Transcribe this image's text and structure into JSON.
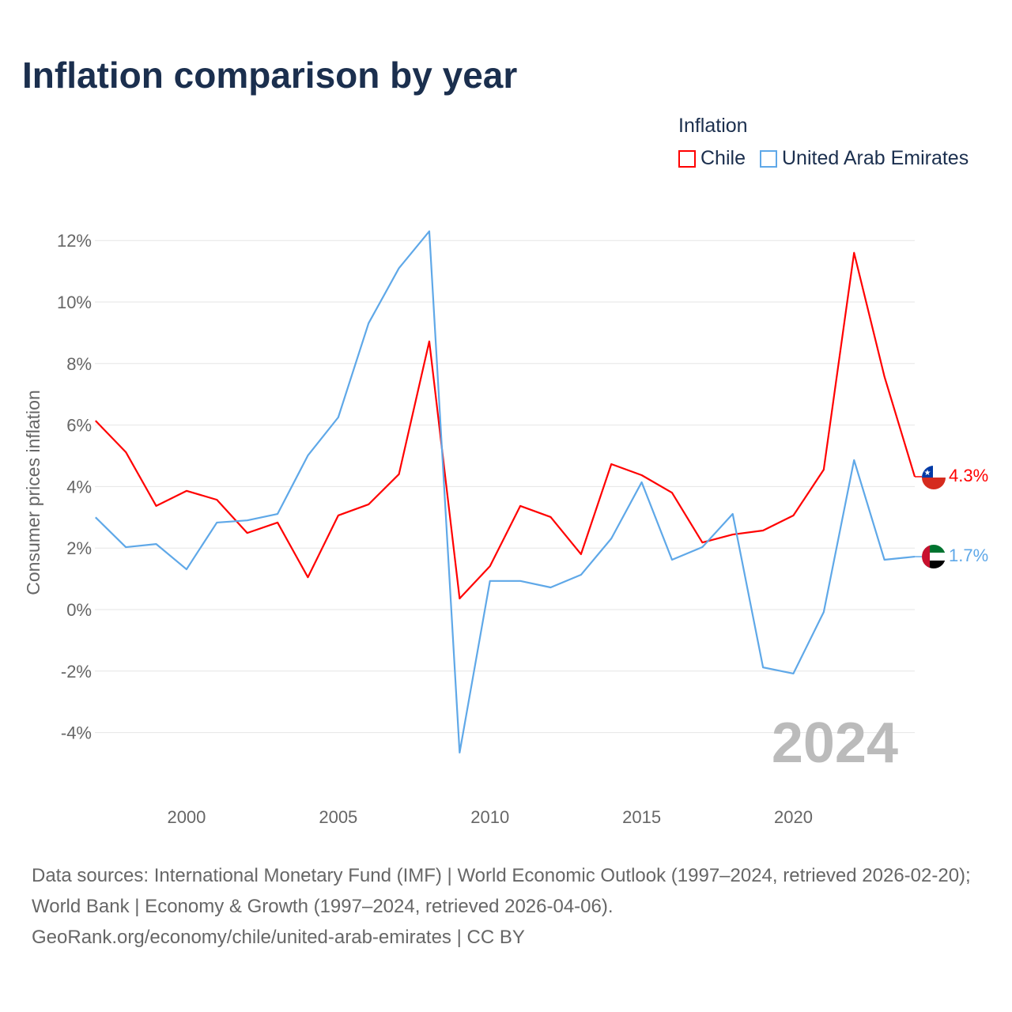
{
  "title": "Inflation comparison by year",
  "legend": {
    "title": "Inflation"
  },
  "year_watermark": "2024",
  "source": {
    "line1": "Data sources: International Monetary Fund (IMF) | World Economic Outlook (1997–2024, retrieved 2026-02-20); World Bank | Economy & Growth (1997–2024, retrieved 2026-04-06).",
    "line2": "GeoRank.org/economy/chile/united-arab-emirates | CC BY"
  },
  "chart_data": {
    "type": "line",
    "title": "Inflation comparison by year",
    "ylabel": "Consumer prices inflation",
    "xlabel": "",
    "xlim": [
      1997,
      2024
    ],
    "ylim": [
      -6,
      12.5
    ],
    "x_ticks": [
      2000,
      2005,
      2010,
      2015,
      2020
    ],
    "y_ticks": [
      -4,
      -2,
      0,
      2,
      4,
      6,
      8,
      10,
      12
    ],
    "y_tick_labels": [
      "-4%",
      "-2%",
      "0%",
      "2%",
      "4%",
      "6%",
      "8%",
      "10%",
      "12%"
    ],
    "grid": true,
    "legend_position": "top-right",
    "x": [
      1997,
      1998,
      1999,
      2000,
      2001,
      2002,
      2003,
      2004,
      2005,
      2006,
      2007,
      2008,
      2009,
      2010,
      2011,
      2012,
      2013,
      2014,
      2015,
      2016,
      2017,
      2018,
      2019,
      2020,
      2021,
      2022,
      2023,
      2024
    ],
    "series": [
      {
        "name": "Chile",
        "color": "#ff0000",
        "end_label": "4.3%",
        "values": [
          6.14,
          5.12,
          3.37,
          3.86,
          3.57,
          2.49,
          2.83,
          1.05,
          3.06,
          3.42,
          4.4,
          8.72,
          0.36,
          1.41,
          3.37,
          3.01,
          1.8,
          4.73,
          4.37,
          3.8,
          2.18,
          2.44,
          2.57,
          3.06,
          4.55,
          11.6,
          7.58,
          4.32
        ]
      },
      {
        "name": "United Arab Emirates",
        "color": "#5fa8e8",
        "end_label": "1.7%",
        "values": [
          3.0,
          2.03,
          2.13,
          1.31,
          2.83,
          2.9,
          3.11,
          5.01,
          6.25,
          9.31,
          11.1,
          12.3,
          -4.65,
          0.93,
          0.93,
          0.72,
          1.13,
          2.31,
          4.14,
          1.62,
          2.03,
          3.11,
          -1.88,
          -2.08,
          -0.08,
          4.86,
          1.62,
          1.72
        ]
      }
    ]
  }
}
